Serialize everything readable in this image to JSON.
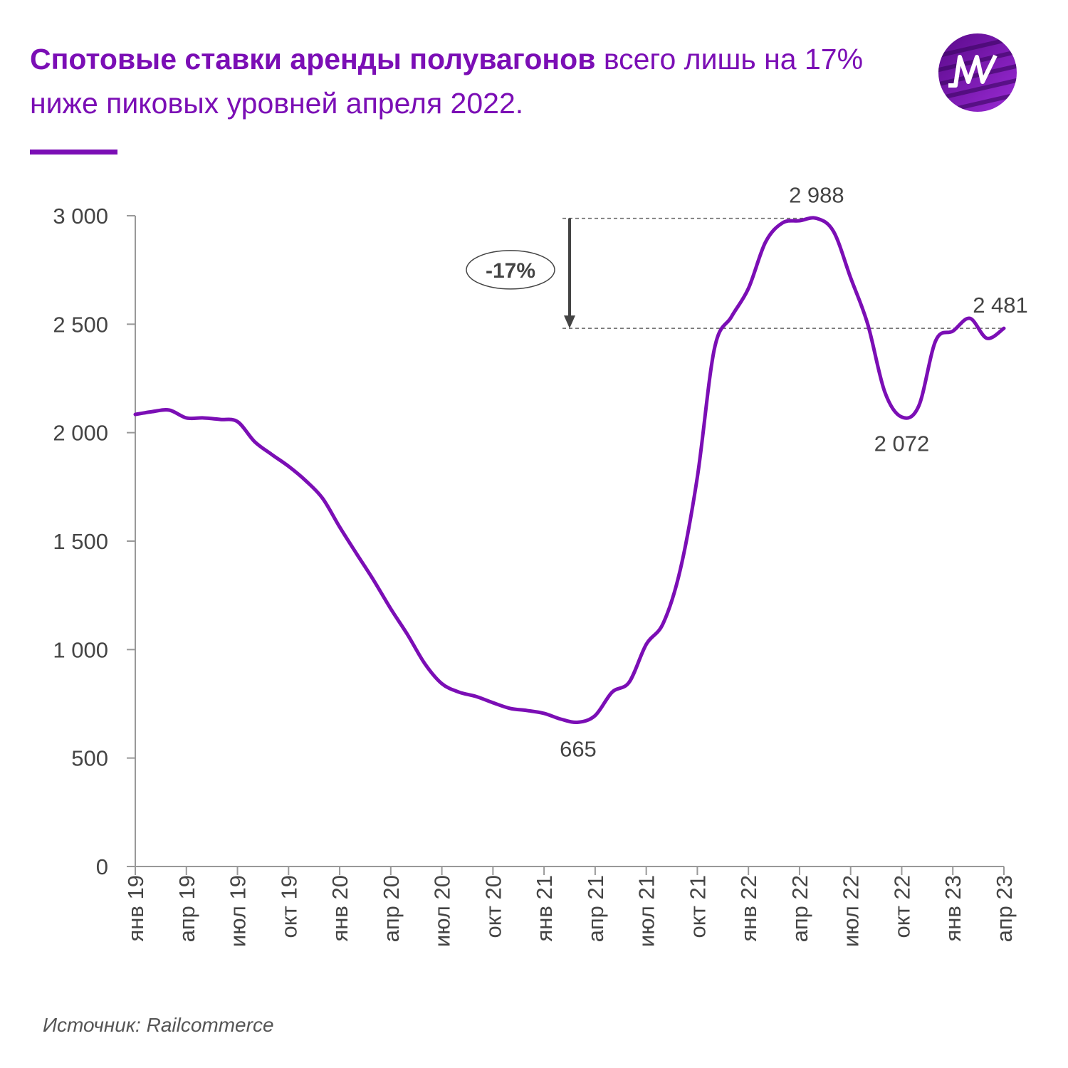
{
  "chart_data": {
    "type": "line",
    "title_bold": "Спотовые ставки аренды полувагонов",
    "title": "всего лишь на 17% ниже пиковых уровней апреля 2022.",
    "source": "Источник: Railcommerce",
    "annotation": "-17%",
    "categories": [
      "янв 19",
      null,
      null,
      "апр 19",
      null,
      null,
      "июл 19",
      null,
      null,
      "окт 19",
      null,
      null,
      "янв 20",
      null,
      null,
      "апр 20",
      null,
      null,
      "июл 20",
      null,
      null,
      "окт 20",
      null,
      null,
      "янв 21",
      null,
      null,
      "апр 21",
      null,
      null,
      "июл 21",
      null,
      null,
      "окт 21",
      null,
      null,
      "янв 22",
      null,
      null,
      "апр 22",
      null,
      null,
      "июл 22",
      null,
      null,
      "окт 22",
      null,
      null,
      "янв 23",
      null,
      null,
      "апр 23"
    ],
    "series": [
      {
        "name": "Спотовые ставки",
        "color": "#7b0eb5",
        "values": [
          2084,
          2097,
          2104,
          2068,
          2068,
          2061,
          2051,
          1959,
          1900,
          1845,
          1779,
          1697,
          1565,
          1441,
          1319,
          1188,
          1067,
          935,
          843,
          804,
          784,
          755,
          729,
          719,
          706,
          679,
          665,
          696,
          804,
          850,
          1024,
          1122,
          1369,
          1795,
          2386,
          2534,
          2665,
          2878,
          2967,
          2977,
          2988,
          2927,
          2714,
          2501,
          2189,
          2072,
          2123,
          2425,
          2468,
          2527,
          2435,
          2481
        ],
        "value_labels": [
          null,
          null,
          null,
          null,
          null,
          null,
          null,
          null,
          null,
          null,
          null,
          null,
          null,
          null,
          null,
          null,
          null,
          null,
          null,
          null,
          null,
          null,
          null,
          null,
          null,
          null,
          "665",
          null,
          null,
          null,
          null,
          null,
          null,
          null,
          null,
          null,
          null,
          null,
          null,
          null,
          "2 988",
          null,
          null,
          null,
          null,
          "2 072",
          null,
          null,
          null,
          null,
          null,
          "2 481"
        ]
      }
    ],
    "ylim": [
      0,
      3000
    ],
    "yticks": [
      0,
      500,
      {
        "value": 1000,
        "label": "1 000"
      },
      {
        "value": 1500,
        "label": "1 500"
      },
      {
        "value": 2000,
        "label": "2 000"
      },
      {
        "value": 2500,
        "label": "2 500"
      },
      {
        "value": 3000,
        "label": "3 000"
      }
    ]
  }
}
